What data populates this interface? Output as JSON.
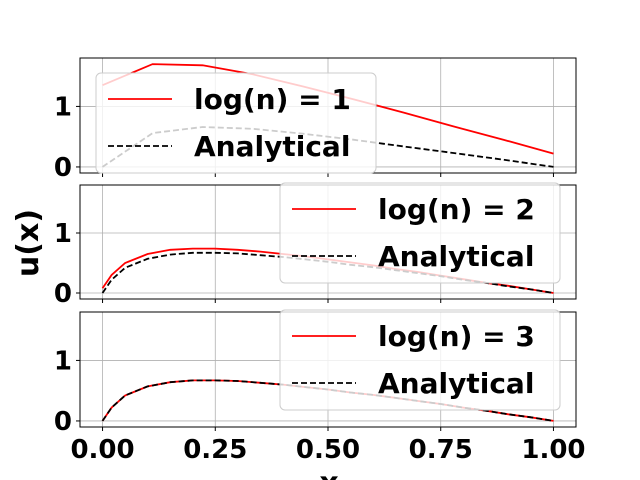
{
  "chart_data": {
    "type": "line",
    "ylabel": "u(x)",
    "xlabel": "x",
    "xlim": [
      -0.05,
      1.05
    ],
    "ylim": [
      -0.1,
      1.8
    ],
    "xticks": [
      0.0,
      0.25,
      0.5,
      0.75,
      1.0
    ],
    "xtick_labels": [
      "0.00",
      "0.25",
      "0.50",
      "0.75",
      "1.00"
    ],
    "yticks": [
      0,
      1
    ],
    "ytick_labels": [
      "0",
      "1"
    ],
    "grid": true,
    "colors": {
      "approx": "#ff0000",
      "analytical": "#000000"
    },
    "panels": [
      {
        "legend_position": "top-left",
        "series": [
          {
            "name": "log(n) = 1",
            "style": "solid",
            "x": [
              0.0,
              0.111,
              0.222,
              0.333,
              0.444,
              0.556,
              0.667,
              0.778,
              0.889,
              1.0
            ],
            "y": [
              1.35,
              1.7,
              1.68,
              1.53,
              1.33,
              1.12,
              0.9,
              0.67,
              0.45,
              0.22
            ]
          },
          {
            "name": "Analytical",
            "style": "dashed",
            "x": [
              0.0,
              0.111,
              0.222,
              0.333,
              0.444,
              0.556,
              0.667,
              0.778,
              0.889,
              1.0
            ],
            "y": [
              0.0,
              0.56,
              0.66,
              0.63,
              0.55,
              0.45,
              0.34,
              0.23,
              0.12,
              0.0
            ]
          }
        ]
      },
      {
        "legend_position": "top-right",
        "series": [
          {
            "name": "log(n) = 2",
            "style": "solid",
            "x": [
              0.0,
              0.02,
              0.05,
              0.1,
              0.15,
              0.2,
              0.25,
              0.3,
              0.35,
              0.4,
              0.45,
              0.5,
              0.55,
              0.6,
              0.65,
              0.7,
              0.75,
              0.8,
              0.85,
              0.9,
              0.95,
              1.0
            ],
            "y": [
              0.08,
              0.3,
              0.5,
              0.65,
              0.72,
              0.74,
              0.74,
              0.72,
              0.69,
              0.65,
              0.61,
              0.56,
              0.51,
              0.46,
              0.4,
              0.35,
              0.29,
              0.23,
              0.17,
              0.12,
              0.06,
              0.0
            ]
          },
          {
            "name": "Analytical",
            "style": "dashed",
            "x": [
              0.0,
              0.02,
              0.05,
              0.1,
              0.15,
              0.2,
              0.25,
              0.3,
              0.35,
              0.4,
              0.45,
              0.5,
              0.55,
              0.6,
              0.65,
              0.7,
              0.75,
              0.8,
              0.85,
              0.9,
              0.95,
              1.0
            ],
            "y": [
              0.0,
              0.22,
              0.42,
              0.57,
              0.64,
              0.67,
              0.67,
              0.66,
              0.63,
              0.6,
              0.56,
              0.52,
              0.47,
              0.43,
              0.38,
              0.33,
              0.28,
              0.22,
              0.17,
              0.11,
              0.06,
              0.0
            ]
          }
        ]
      },
      {
        "legend_position": "top-right",
        "series": [
          {
            "name": "log(n) = 3",
            "style": "solid",
            "x": [
              0.0,
              0.02,
              0.05,
              0.1,
              0.15,
              0.2,
              0.25,
              0.3,
              0.35,
              0.4,
              0.45,
              0.5,
              0.55,
              0.6,
              0.65,
              0.7,
              0.75,
              0.8,
              0.85,
              0.9,
              0.95,
              1.0
            ],
            "y": [
              0.0,
              0.22,
              0.42,
              0.57,
              0.64,
              0.67,
              0.67,
              0.66,
              0.63,
              0.6,
              0.56,
              0.52,
              0.47,
              0.43,
              0.38,
              0.33,
              0.28,
              0.22,
              0.17,
              0.11,
              0.06,
              0.0
            ]
          },
          {
            "name": "Analytical",
            "style": "dashed",
            "x": [
              0.0,
              0.02,
              0.05,
              0.1,
              0.15,
              0.2,
              0.25,
              0.3,
              0.35,
              0.4,
              0.45,
              0.5,
              0.55,
              0.6,
              0.65,
              0.7,
              0.75,
              0.8,
              0.85,
              0.9,
              0.95,
              1.0
            ],
            "y": [
              0.0,
              0.22,
              0.42,
              0.57,
              0.64,
              0.67,
              0.67,
              0.66,
              0.63,
              0.6,
              0.56,
              0.52,
              0.47,
              0.43,
              0.38,
              0.33,
              0.28,
              0.22,
              0.17,
              0.11,
              0.06,
              0.0
            ]
          }
        ]
      }
    ]
  }
}
